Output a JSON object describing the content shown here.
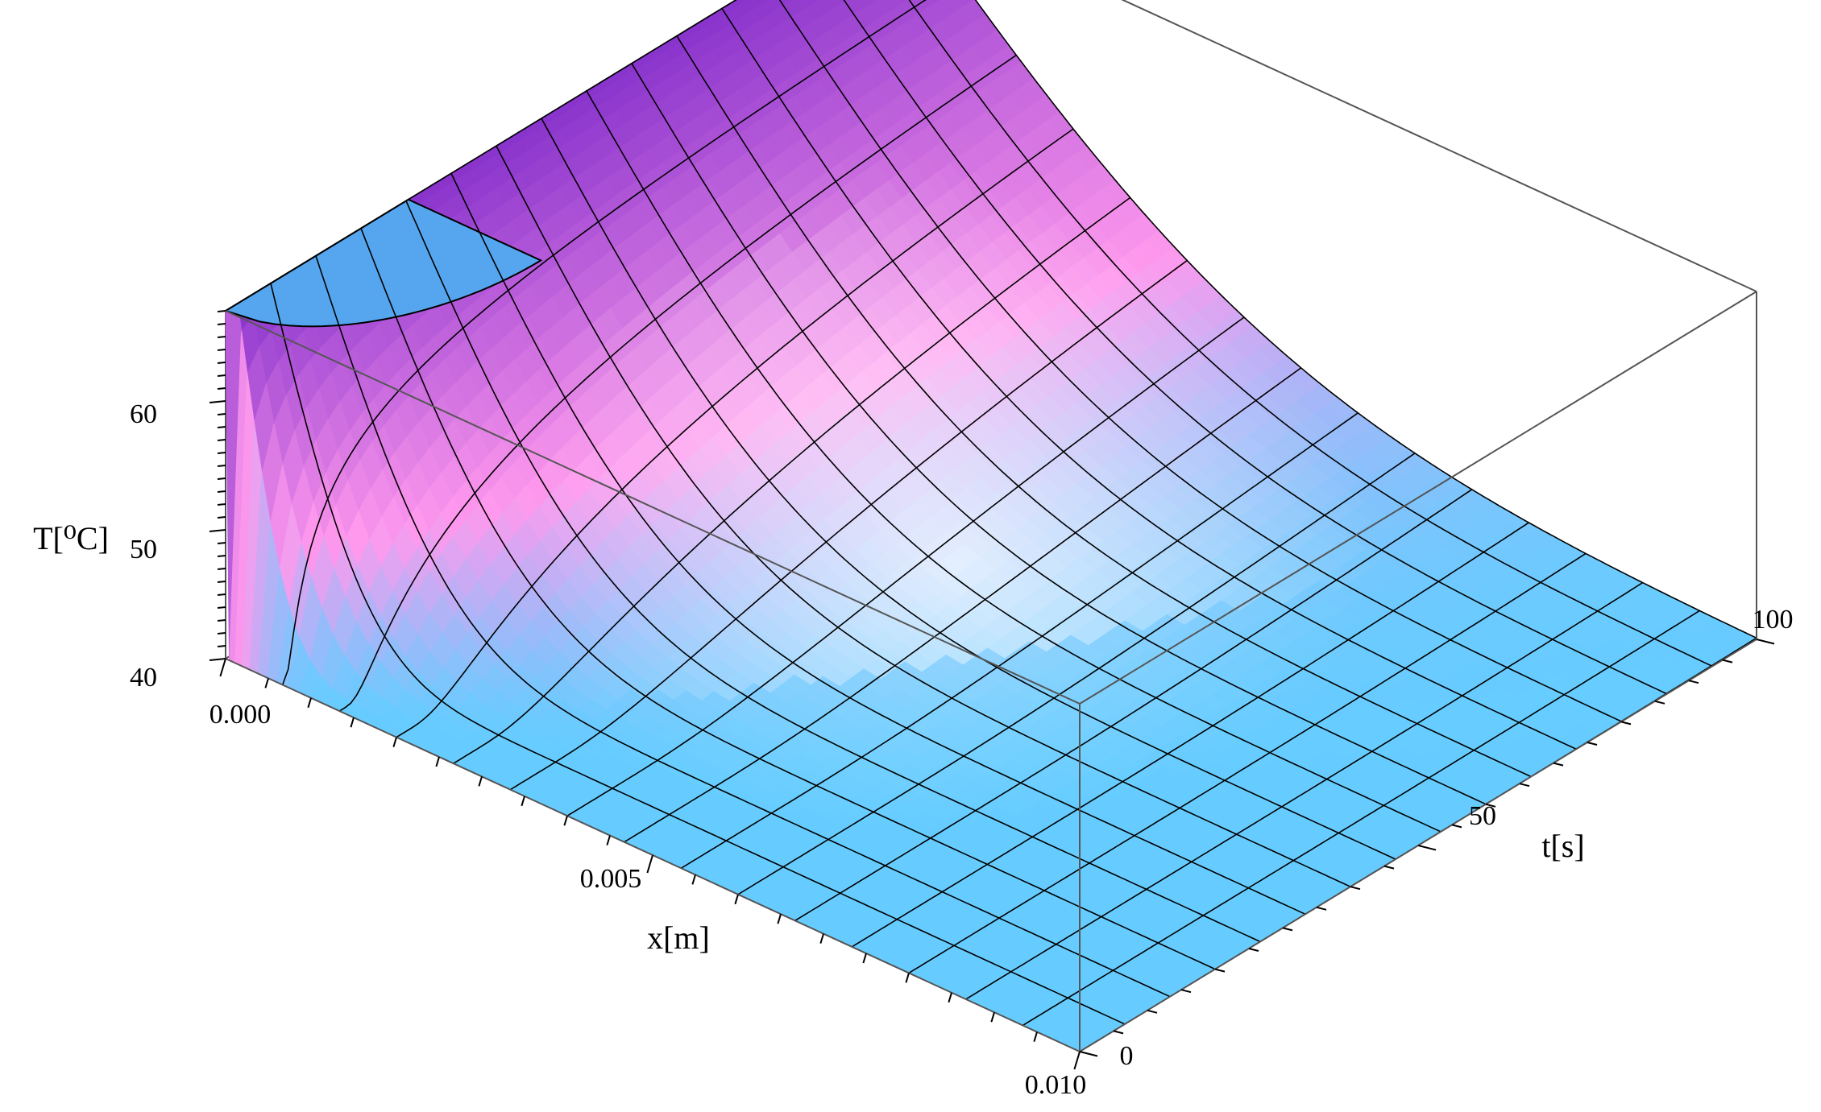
{
  "chart_data": {
    "type": "surface3d",
    "title": "",
    "xlabel": "x[m]",
    "ylabel": "t[s]",
    "zlabel": "T[⁰C]",
    "xlim": [
      0.0,
      0.01
    ],
    "ylim": [
      0,
      100
    ],
    "zlim": [
      40,
      67
    ],
    "x_ticks": [
      "0.000",
      "0.005",
      "0.010"
    ],
    "y_ticks": [
      "0",
      "50",
      "100"
    ],
    "z_ticks": [
      "40",
      "50",
      "60"
    ],
    "x_tick_values": [
      0.0,
      0.005,
      0.01
    ],
    "y_tick_values": [
      0,
      50,
      100
    ],
    "z_tick_values": [
      40,
      50,
      60
    ],
    "boundary_temperature": 67,
    "initial_temperature": 40,
    "mesh_x_lines": 15,
    "mesh_t_lines": 15,
    "colors": {
      "base": "#66ccff",
      "high": "#8833cc",
      "mid": "#ff99ee",
      "light": "#ffffff",
      "mesh": "#000000",
      "box": "#555555"
    }
  }
}
